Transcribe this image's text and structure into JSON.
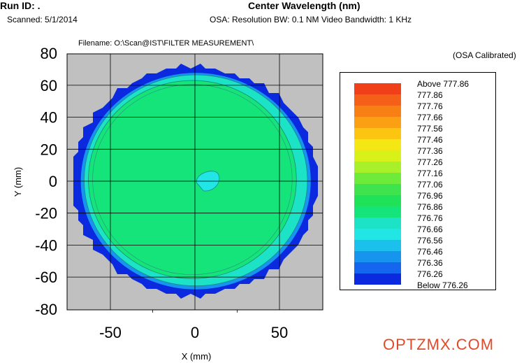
{
  "header": {
    "run_id": "Run ID: .",
    "scanned": "Scanned:  5/1/2014",
    "title": "Center Wavelength (nm)",
    "osa_settings": "OSA: Resolution BW: 0.1 NM     Video Bandwidth: 1 KHz",
    "filename": "Filename: O:\\Scan@IST\\FILTER MEASUREMENT\\",
    "calibrated": "(OSA Calibrated)"
  },
  "watermark": "OPTZMX.COM",
  "chart_data": {
    "type": "heatmap",
    "title": "Center Wavelength (nm)",
    "xlabel": "X (mm)",
    "ylabel": "Y (mm)",
    "xlim": [
      -75,
      75
    ],
    "ylim": [
      -80,
      80
    ],
    "x_ticks": [
      "-50",
      "0",
      "50"
    ],
    "y_ticks": [
      "80",
      "60",
      "40",
      "20",
      "0",
      "-20",
      "-40",
      "-60",
      "-80"
    ],
    "grid": true,
    "legend_position": "right",
    "legend": [
      {
        "label": "Above 777.86",
        "color": "#f0401a"
      },
      {
        "label": "777.86",
        "color": "#f46017"
      },
      {
        "label": "777.76",
        "color": "#f77f14"
      },
      {
        "label": "777.66",
        "color": "#faa012"
      },
      {
        "label": "777.56",
        "color": "#fbc510"
      },
      {
        "label": "777.46",
        "color": "#f5e714"
      },
      {
        "label": "777.36",
        "color": "#d8f118"
      },
      {
        "label": "777.26",
        "color": "#a7f02a"
      },
      {
        "label": "777.16",
        "color": "#6eea3a"
      },
      {
        "label": "777.06",
        "color": "#3fe34d"
      },
      {
        "label": "776.96",
        "color": "#1fe258"
      },
      {
        "label": "776.86",
        "color": "#14e47a"
      },
      {
        "label": "776.76",
        "color": "#1de3c6"
      },
      {
        "label": "776.66",
        "color": "#22e6e6"
      },
      {
        "label": "776.56",
        "color": "#1bc0ec"
      },
      {
        "label": "776.46",
        "color": "#1795ee"
      },
      {
        "label": "776.36",
        "color": "#1566ee"
      },
      {
        "label": "776.26",
        "color": "#0e3fe4"
      },
      {
        "label": "Below 776.26",
        "color": "#0b2adf"
      }
    ],
    "wafer": {
      "center": [
        0,
        0
      ],
      "outer_radius_mm": 72,
      "zones": [
        {
          "name": "edge",
          "range": "below 776.26 to 776.36",
          "color": "#0b2adf"
        },
        {
          "name": "ring",
          "range": "776.46 to 776.76",
          "color": "#1de3c6"
        },
        {
          "name": "bulk",
          "range": "776.76 to 776.86",
          "color": "#14e47a"
        },
        {
          "name": "center spot",
          "range": "776.66 to 776.76",
          "color": "#22e6e6",
          "center": [
            8,
            0
          ]
        }
      ]
    }
  }
}
